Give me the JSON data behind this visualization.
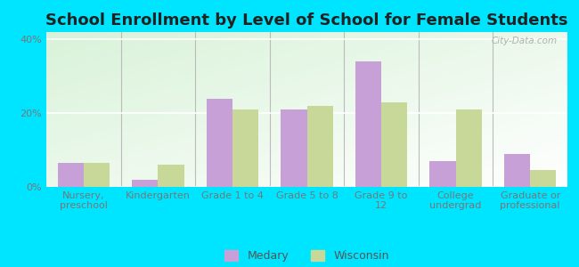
{
  "title": "School Enrollment by Level of School for Female Students",
  "categories": [
    "Nursery,\npreschool",
    "Kindergarten",
    "Grade 1 to 4",
    "Grade 5 to 8",
    "Grade 9 to\n12",
    "College\nundergrad",
    "Graduate or\nprofessional"
  ],
  "medary": [
    6.5,
    2.0,
    24.0,
    21.0,
    34.0,
    7.0,
    9.0
  ],
  "wisconsin": [
    6.5,
    6.0,
    21.0,
    22.0,
    23.0,
    21.0,
    4.5
  ],
  "medary_color": "#c8a0d8",
  "wisconsin_color": "#c8d898",
  "background_outer": "#00e5ff",
  "ylim": [
    0,
    42
  ],
  "yticks": [
    0,
    20,
    40
  ],
  "ytick_labels": [
    "0%",
    "20%",
    "40%"
  ],
  "bar_width": 0.35,
  "title_fontsize": 13,
  "tick_fontsize": 8,
  "legend_fontsize": 9,
  "watermark": "City-Data.com"
}
